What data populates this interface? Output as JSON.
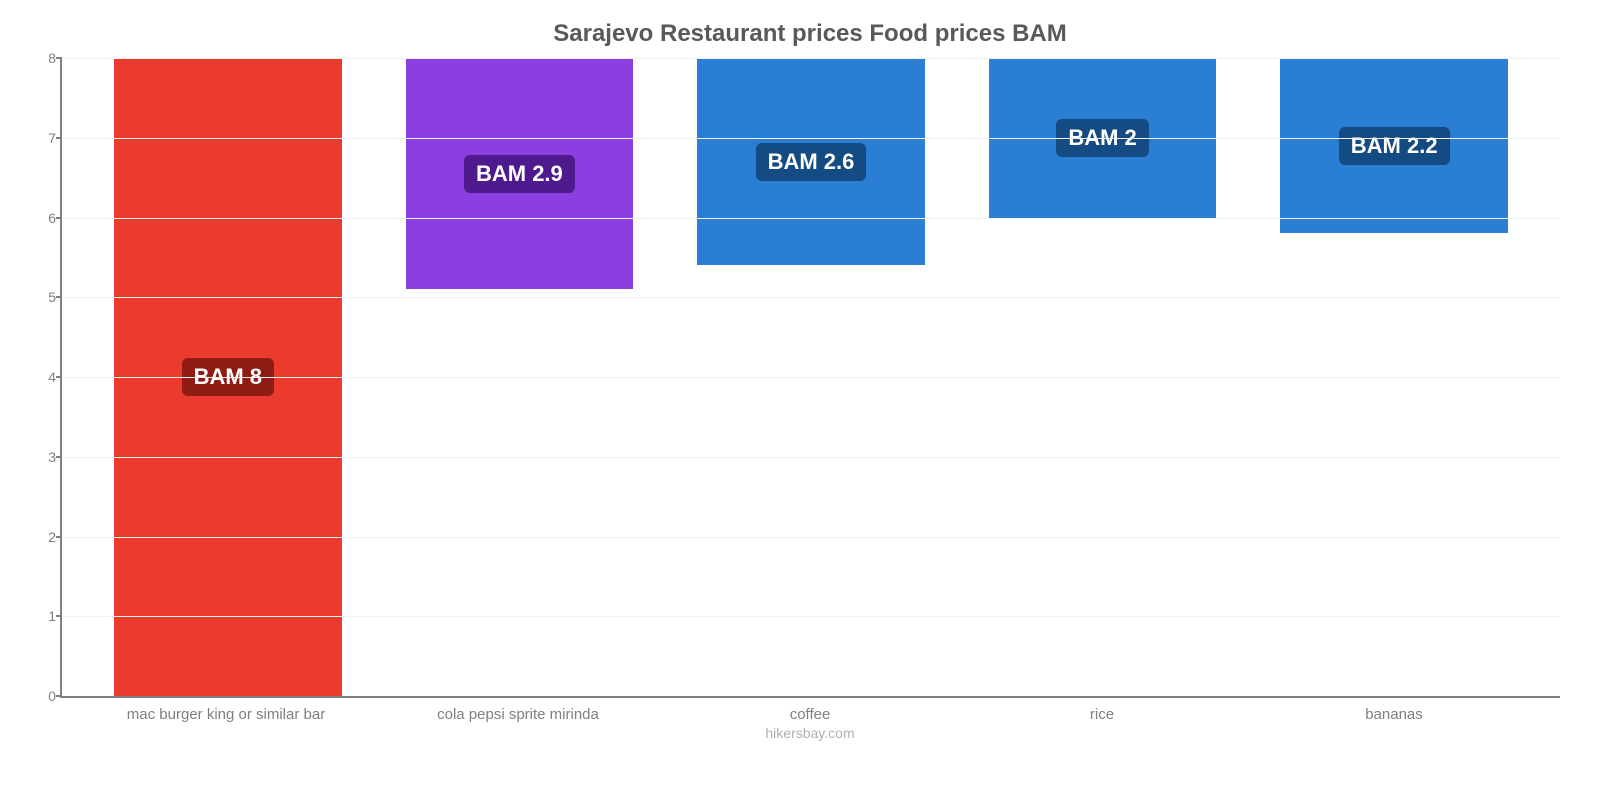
{
  "chart": {
    "type": "bar",
    "title": "Sarajevo Restaurant prices Food prices BAM",
    "title_fontsize": 24,
    "title_color": "#595959",
    "background_color": "#ffffff",
    "grid_color": "#f0f0f0",
    "axis_color": "#808080",
    "tick_label_color": "#808080",
    "tick_label_fontsize": 14,
    "x_label_fontsize": 15,
    "ylim": [
      0,
      8
    ],
    "ytick_step": 1,
    "yticks": [
      0,
      1,
      2,
      3,
      4,
      5,
      6,
      7,
      8
    ],
    "bar_width_pct": 78,
    "categories": [
      "mac burger king or similar bar",
      "cola pepsi sprite mirinda",
      "coffee",
      "rice",
      "bananas"
    ],
    "values": [
      8,
      2.9,
      2.6,
      2,
      2.2
    ],
    "value_labels": [
      "BAM 8",
      "BAM 2.9",
      "BAM 2.6",
      "BAM 2",
      "BAM 2.2"
    ],
    "bar_colors": [
      "#eb3b2e",
      "#8b3fe0",
      "#2a7fd4",
      "#2a7fd4",
      "#2a7fd4"
    ],
    "badge_bg_colors": [
      "#8f1c14",
      "#4e1a8e",
      "#134b82",
      "#134b82",
      "#134b82"
    ],
    "badge_text_color": "#ffffff",
    "badge_fontsize": 22,
    "footer": "hikersbay.com",
    "footer_color": "#b0b0b0",
    "footer_fontsize": 14
  }
}
